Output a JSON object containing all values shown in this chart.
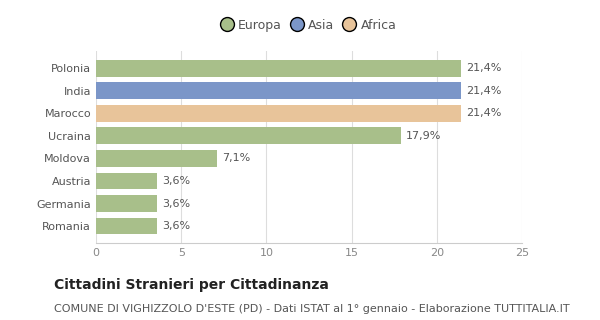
{
  "categories": [
    "Polonia",
    "India",
    "Marocco",
    "Ucraina",
    "Moldova",
    "Austria",
    "Germania",
    "Romania"
  ],
  "values": [
    21.4,
    21.4,
    21.4,
    17.9,
    7.1,
    3.6,
    3.6,
    3.6
  ],
  "labels": [
    "21,4%",
    "21,4%",
    "21,4%",
    "17,9%",
    "7,1%",
    "3,6%",
    "3,6%",
    "3,6%"
  ],
  "colors": [
    "#a8bf8a",
    "#7b96c8",
    "#e8c49a",
    "#a8bf8a",
    "#a8bf8a",
    "#a8bf8a",
    "#a8bf8a",
    "#a8bf8a"
  ],
  "legend_labels": [
    "Europa",
    "Asia",
    "Africa"
  ],
  "legend_colors": [
    "#a8bf8a",
    "#7b96c8",
    "#e8c49a"
  ],
  "xlim": [
    0,
    25
  ],
  "xticks": [
    0,
    5,
    10,
    15,
    20,
    25
  ],
  "title": "Cittadini Stranieri per Cittadinanza",
  "subtitle": "COMUNE DI VIGHIZZOLO D'ESTE (PD) - Dati ISTAT al 1° gennaio - Elaborazione TUTTITALIA.IT",
  "title_fontsize": 10,
  "subtitle_fontsize": 8,
  "label_fontsize": 8,
  "tick_fontsize": 8,
  "legend_fontsize": 9,
  "bg_color": "#ffffff",
  "bar_height": 0.75
}
